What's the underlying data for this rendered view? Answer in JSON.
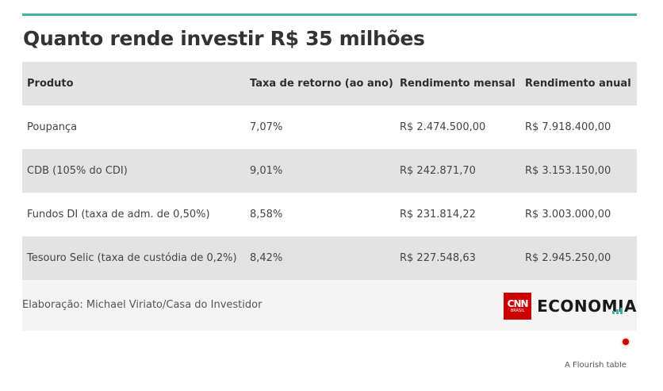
{
  "title": "Quanto rende investir R$ 35 milhões",
  "table": {
    "headers": [
      "Produto",
      "Taxa de retorno (ao ano)",
      "Rendimento mensal",
      "Rendimento anual"
    ],
    "rows": [
      [
        "Poupança",
        "7,07%",
        "R$ 2.474.500,00",
        "R$ 7.918.400,00"
      ],
      [
        "CDB (105% do CDI)",
        "9,01%",
        "R$ 242.871,70",
        "R$ 3.153.150,00"
      ],
      [
        "Fundos DI (taxa de adm. de 0,50%)",
        "8,58%",
        "R$ 231.814,22",
        "R$ 3.003.000,00"
      ],
      [
        "Tesouro Selic (taxa de custódia de 0,2%)",
        "8,42%",
        "R$ 227.548,63",
        "R$ 2.945.250,00"
      ]
    ]
  },
  "chart_data": {
    "type": "table",
    "title": "Quanto rende investir R$ 35 milhões",
    "columns": [
      "Produto",
      "Taxa de retorno (ao ano)",
      "Rendimento mensal",
      "Rendimento anual"
    ],
    "rows": [
      {
        "Produto": "Poupança",
        "Taxa de retorno (ao ano)": "7,07%",
        "Rendimento mensal": "R$ 2.474.500,00",
        "Rendimento anual": "R$ 7.918.400,00"
      },
      {
        "Produto": "CDB (105% do CDI)",
        "Taxa de retorno (ao ano)": "9,01%",
        "Rendimento mensal": "R$ 242.871,70",
        "Rendimento anual": "R$ 3.153.150,00"
      },
      {
        "Produto": "Fundos DI (taxa de adm. de 0,50%)",
        "Taxa de retorno (ao ano)": "8,58%",
        "Rendimento mensal": "R$ 231.814,22",
        "Rendimento anual": "R$ 3.003.000,00"
      },
      {
        "Produto": "Tesouro Selic (taxa de custódia de 0,2%)",
        "Taxa de retorno (ao ano)": "8,42%",
        "Rendimento mensal": "R$ 227.548,63",
        "Rendimento anual": "R$ 2.945.250,00"
      }
    ]
  },
  "footer": {
    "source": "Elaboração: Michael Viriato/Casa do Investidor",
    "logo_cnn": "CNN",
    "logo_cnn_sub": "BRASIL",
    "logo_economia": "ECONOMIA"
  },
  "credit": "A Flourish table",
  "colors": {
    "accent": "#3fb4a4",
    "cnn_red": "#cc0000",
    "row_shade": "#e3e3e3"
  }
}
